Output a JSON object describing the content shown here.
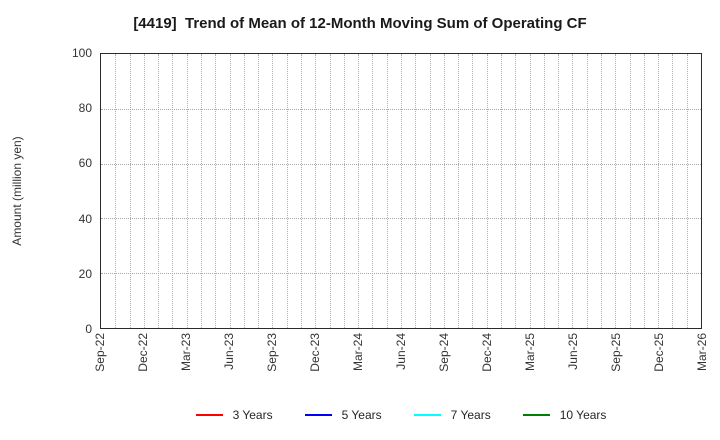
{
  "chart_data": {
    "type": "line",
    "title": "[4419]  Trend of Mean of 12-Month Moving Sum of Operating CF",
    "xlabel": "",
    "ylabel": "Amount (million yen)",
    "ylim": [
      0,
      100
    ],
    "yticks": [
      0,
      20,
      40,
      60,
      80,
      100
    ],
    "x_tick_labels": [
      "Sep-22",
      "Dec-22",
      "Mar-23",
      "Jun-23",
      "Sep-23",
      "Dec-23",
      "Mar-24",
      "Jun-24",
      "Sep-24",
      "Dec-24",
      "Mar-25",
      "Jun-25",
      "Sep-25",
      "Dec-25",
      "Mar-26"
    ],
    "months_per_tick": 3,
    "x_total_months": 42,
    "grid": "dotted, vertical line every month, horizontal line every 20 units",
    "legend_position": "bottom",
    "series": [
      {
        "name": "3 Years",
        "color": "#ff0000",
        "values": []
      },
      {
        "name": "5 Years",
        "color": "#0000ff",
        "values": []
      },
      {
        "name": "7 Years",
        "color": "#00ffff",
        "values": []
      },
      {
        "name": "10 Years",
        "color": "#008000",
        "values": []
      }
    ],
    "note": "plot area is empty - no data lines are drawn"
  }
}
